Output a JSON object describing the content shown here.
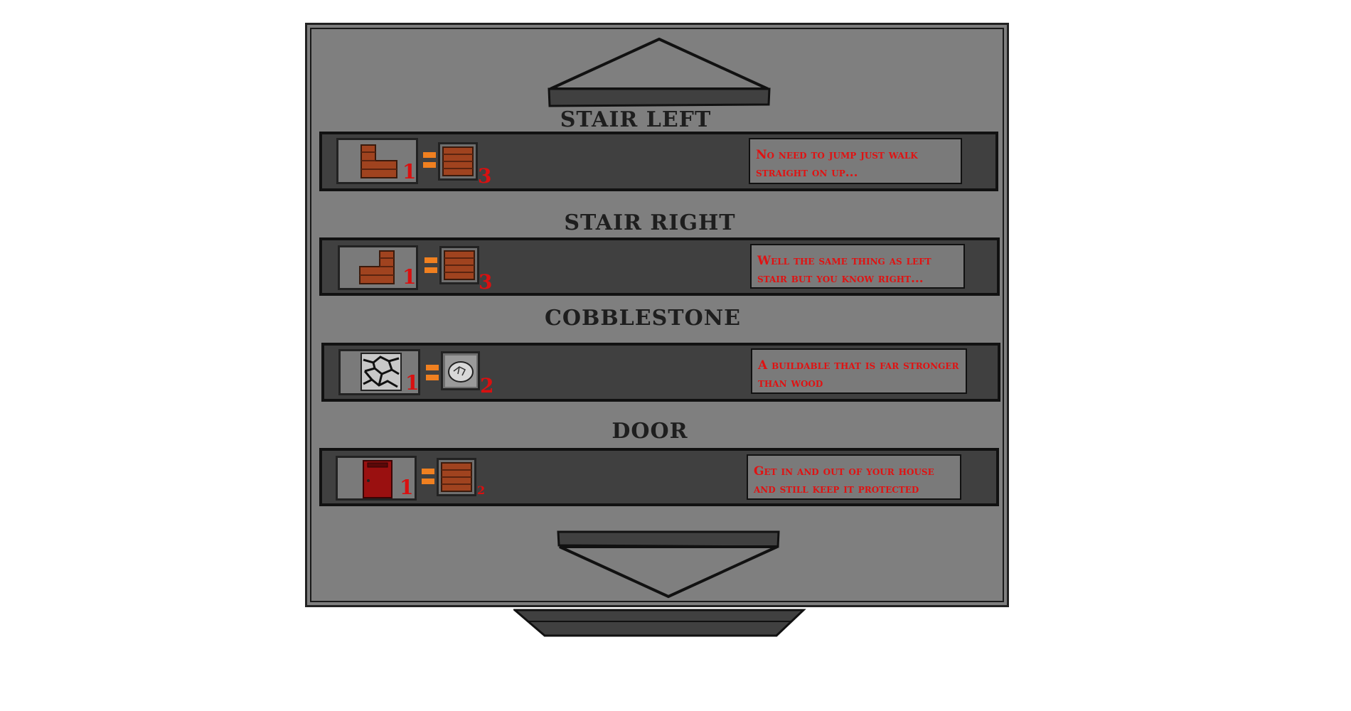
{
  "recipes": [
    {
      "name": "STAIR LEFT",
      "result_count": "1",
      "ingredient_count": "3",
      "ingredient_icon": "wood-plank-icon",
      "result_icon": "stair-left-icon",
      "description": "No need to jump just walk straight on up..."
    },
    {
      "name": "STAIR RIGHT",
      "result_count": "1",
      "ingredient_count": "3",
      "ingredient_icon": "wood-plank-icon",
      "result_icon": "stair-right-icon",
      "description": "Well the same thing as left stair but you know right..."
    },
    {
      "name": "COBBLESTONE",
      "result_count": "1",
      "ingredient_count": "2",
      "ingredient_icon": "stone-icon",
      "result_icon": "cobblestone-icon",
      "description": "A buildable that is far stronger than wood"
    },
    {
      "name": "DOOR",
      "result_count": "1",
      "ingredient_count": "2",
      "ingredient_icon": "wood-plank-icon",
      "result_icon": "door-icon",
      "description": "Get in and out of your house and still keep it protected"
    }
  ],
  "controls": {
    "scroll_up_icon": "up-arrow-icon",
    "scroll_down_icon": "down-arrow-icon"
  },
  "colors": {
    "panel": "#7f7f7f",
    "row": "#404040",
    "text_red": "#e01212",
    "equals": "#f08020",
    "wood": "#a0431f"
  }
}
